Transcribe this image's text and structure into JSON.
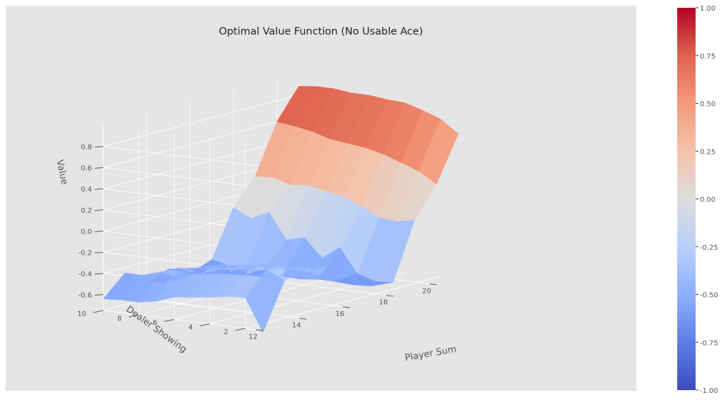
{
  "chart_data": {
    "type": "surface",
    "title": "Optimal Value Function (No Usable Ace)",
    "xlabel": "Player Sum",
    "ylabel": "Dealer Showing",
    "zlabel": "Value",
    "grid": true,
    "colormap": "coolwarm",
    "x": [
      12,
      13,
      14,
      15,
      16,
      17,
      18,
      19,
      20,
      21
    ],
    "y": [
      1,
      2,
      3,
      4,
      5,
      6,
      7,
      8,
      9,
      10
    ],
    "x_ticks": [
      "12",
      "14",
      "16",
      "18",
      "20"
    ],
    "y_ticks": [
      "2",
      "4",
      "6",
      "8",
      "10"
    ],
    "z_ticks": [
      "-0.6",
      "-0.4",
      "-0.2",
      "0.0",
      "0.2",
      "0.4",
      "0.6",
      "0.8"
    ],
    "colorbar_ticks": [
      "-1.00",
      "-0.75",
      "-0.50",
      "-0.25",
      "0.00",
      "0.25",
      "0.50",
      "0.75",
      "1.00"
    ],
    "z": [
      [
        -0.77,
        -0.46,
        -0.47,
        -0.5,
        -0.52,
        -0.54,
        -0.6,
        -0.63,
        -0.63,
        -0.64
      ],
      [
        -0.33,
        -0.25,
        -0.27,
        -0.29,
        -0.31,
        -0.32,
        -0.34,
        -0.4,
        -0.45,
        -0.45
      ],
      [
        -0.28,
        -0.3,
        -0.31,
        -0.34,
        -0.35,
        -0.39,
        -0.45,
        -0.52,
        -0.57,
        -0.6
      ],
      [
        -0.3,
        -0.37,
        -0.34,
        -0.35,
        -0.37,
        -0.4,
        -0.41,
        -0.46,
        -0.5,
        -0.52
      ],
      [
        -0.46,
        -0.52,
        -0.5,
        -0.52,
        -0.53,
        -0.56,
        -0.57,
        -0.58,
        -0.6,
        -0.62
      ],
      [
        -0.6,
        -0.61,
        -0.6,
        -0.6,
        -0.62,
        -0.6,
        -0.57,
        -0.55,
        -0.57,
        -0.54
      ],
      [
        -0.62,
        -0.63,
        -0.58,
        -0.35,
        -0.47,
        -0.3,
        -0.34,
        -0.1,
        -0.18,
        -0.1
      ],
      [
        -0.08,
        -0.12,
        -0.1,
        -0.02,
        0.06,
        0.08,
        0.12,
        0.1,
        0.15,
        0.14
      ],
      [
        0.2,
        0.3,
        0.36,
        0.42,
        0.46,
        0.48,
        0.5,
        0.55,
        0.58,
        0.6
      ],
      [
        0.62,
        0.74,
        0.8,
        0.85,
        0.86,
        0.88,
        0.88,
        0.9,
        0.9,
        0.88
      ]
    ],
    "zlim": [
      -0.75,
      1.0
    ],
    "colorbar_range": [
      -1.0,
      1.0
    ]
  }
}
